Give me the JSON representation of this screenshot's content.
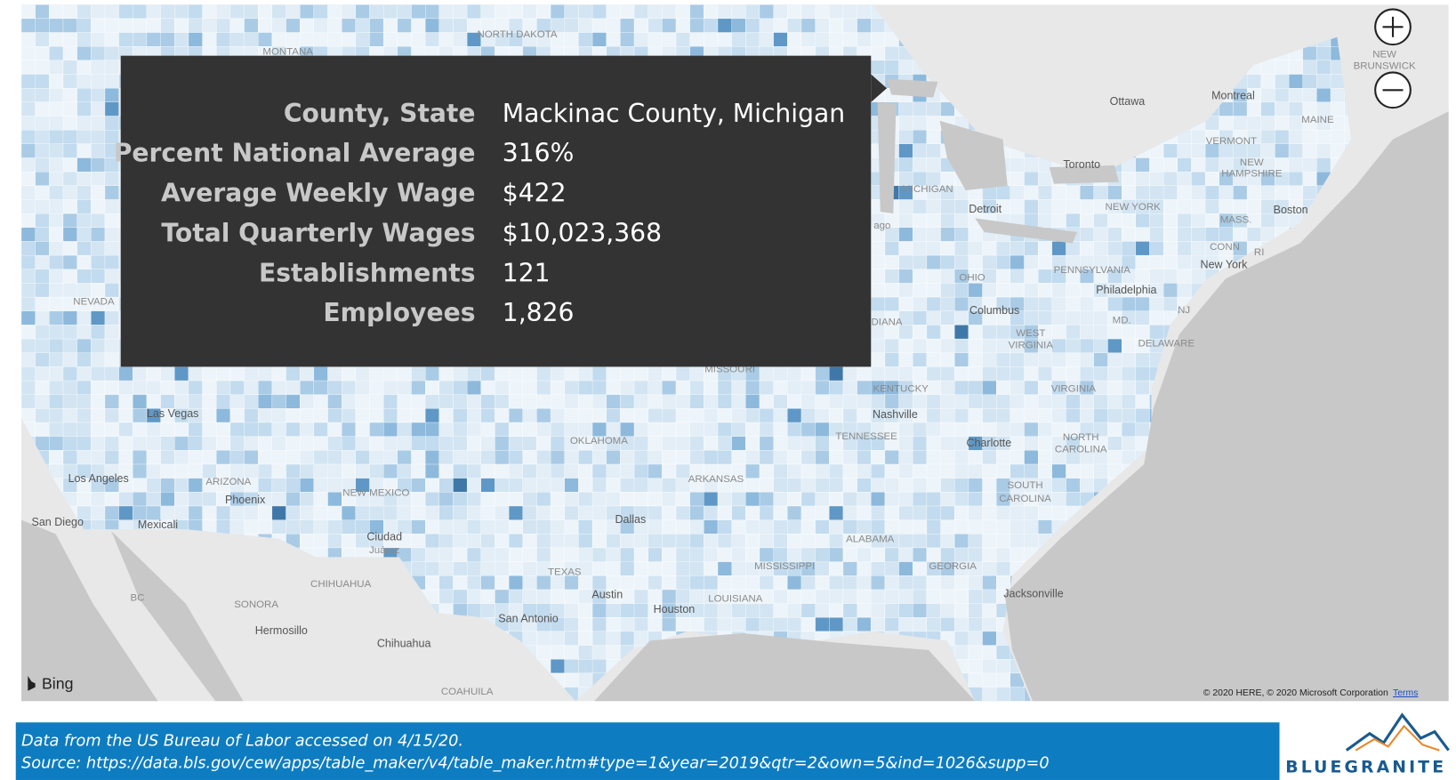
{
  "tooltip": {
    "rows": [
      {
        "label": "County, State",
        "value": "Mackinac County, Michigan"
      },
      {
        "label": "Percent National Average",
        "value": "316%"
      },
      {
        "label": "Average Weekly Wage",
        "value": "$422"
      },
      {
        "label": "Total Quarterly Wages",
        "value": "$10,023,368"
      },
      {
        "label": "Establishments",
        "value": "121"
      },
      {
        "label": "Employees",
        "value": "1,826"
      }
    ]
  },
  "map": {
    "provider": "Bing",
    "attribution": "© 2020 HERE, © 2020 Microsoft Corporation",
    "terms": "Terms",
    "places": [
      {
        "name": "MONTANA",
        "kind": "region"
      },
      {
        "name": "NORTH DAKOTA",
        "kind": "region"
      },
      {
        "name": "NEVADA",
        "kind": "region"
      },
      {
        "name": "Las Vegas",
        "kind": "city"
      },
      {
        "name": "Los Angeles",
        "kind": "city"
      },
      {
        "name": "San Diego",
        "kind": "city"
      },
      {
        "name": "Mexicali",
        "kind": "city"
      },
      {
        "name": "ARIZONA",
        "kind": "region"
      },
      {
        "name": "Phoenix",
        "kind": "city"
      },
      {
        "name": "NEW MEXICO",
        "kind": "region"
      },
      {
        "name": "Ciudad",
        "kind": "city"
      },
      {
        "name": "Juárez",
        "kind": "region"
      },
      {
        "name": "CHIHUAHUA",
        "kind": "region"
      },
      {
        "name": "SONORA",
        "kind": "region"
      },
      {
        "name": "BC",
        "kind": "region"
      },
      {
        "name": "Hermosillo",
        "kind": "city"
      },
      {
        "name": "Chihuahua",
        "kind": "city"
      },
      {
        "name": "COAHUILA",
        "kind": "region"
      },
      {
        "name": "TEXAS",
        "kind": "region"
      },
      {
        "name": "Austin",
        "kind": "city"
      },
      {
        "name": "San Antonio",
        "kind": "city"
      },
      {
        "name": "Houston",
        "kind": "city"
      },
      {
        "name": "Dallas",
        "kind": "city"
      },
      {
        "name": "OKLAHOMA",
        "kind": "region"
      },
      {
        "name": "ARKANSAS",
        "kind": "region"
      },
      {
        "name": "LOUISIANA",
        "kind": "region"
      },
      {
        "name": "MISSISSIPPI",
        "kind": "region"
      },
      {
        "name": "ALABAMA",
        "kind": "region"
      },
      {
        "name": "GEORGIA",
        "kind": "region"
      },
      {
        "name": "Jacksonville",
        "kind": "city"
      },
      {
        "name": "TENNESSEE",
        "kind": "region"
      },
      {
        "name": "Nashville",
        "kind": "city"
      },
      {
        "name": "KENTUCKY",
        "kind": "region"
      },
      {
        "name": "Charlotte",
        "kind": "city"
      },
      {
        "name": "NORTH",
        "kind": "region"
      },
      {
        "name": "CAROLINA",
        "kind": "region"
      },
      {
        "name": "SOUTH",
        "kind": "region"
      },
      {
        "name": "CAROLINA",
        "kind": "region"
      },
      {
        "name": "VIRGINIA",
        "kind": "region"
      },
      {
        "name": "WEST",
        "kind": "region"
      },
      {
        "name": "VIRGINIA",
        "kind": "region"
      },
      {
        "name": "Columbus",
        "kind": "city"
      },
      {
        "name": "OHIO",
        "kind": "region"
      },
      {
        "name": "PENNSYLVANIA",
        "kind": "region"
      },
      {
        "name": "Philadelphia",
        "kind": "city"
      },
      {
        "name": "New York",
        "kind": "city"
      },
      {
        "name": "NEW YORK",
        "kind": "region"
      },
      {
        "name": "MD.",
        "kind": "region"
      },
      {
        "name": "DELAWARE",
        "kind": "region"
      },
      {
        "name": "NJ",
        "kind": "region"
      },
      {
        "name": "Detroit",
        "kind": "city"
      },
      {
        "name": "MICHIGAN",
        "kind": "region"
      },
      {
        "name": "Toronto",
        "kind": "city"
      },
      {
        "name": "Ottawa",
        "kind": "city"
      },
      {
        "name": "Montreal",
        "kind": "city"
      },
      {
        "name": "MAINE",
        "kind": "region"
      },
      {
        "name": "VERMONT",
        "kind": "region"
      },
      {
        "name": "NEW",
        "kind": "region"
      },
      {
        "name": "HAMPSHIRE",
        "kind": "region"
      },
      {
        "name": "MASS.",
        "kind": "region"
      },
      {
        "name": "Boston",
        "kind": "city"
      },
      {
        "name": "CONN",
        "kind": "region"
      },
      {
        "name": "RI",
        "kind": "region"
      },
      {
        "name": "NEW",
        "kind": "region"
      },
      {
        "name": "BRUNSWICK",
        "kind": "region"
      },
      {
        "name": "MISSOURI",
        "kind": "region"
      },
      {
        "name": "DIANA",
        "kind": "region"
      },
      {
        "name": "ago",
        "kind": "region"
      }
    ]
  },
  "footer": {
    "line1": "Data from the US Bureau of Labor accessed on 4/15/20.",
    "line2": "Source: https://data.bls.gov/cew/apps/table_maker/v4/table_maker.htm#type=1&year=2019&qtr=2&own=5&ind=1026&supp=0"
  },
  "logo": "BLUEGRANITE"
}
